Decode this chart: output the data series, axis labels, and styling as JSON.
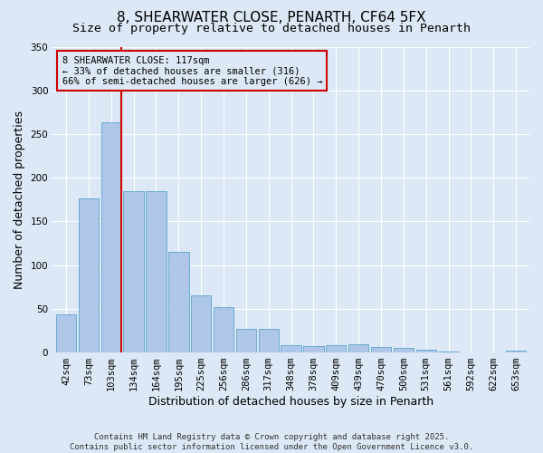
{
  "title": "8, SHEARWATER CLOSE, PENARTH, CF64 5FX",
  "subtitle": "Size of property relative to detached houses in Penarth",
  "xlabel": "Distribution of detached houses by size in Penarth",
  "ylabel": "Number of detached properties",
  "footer_line1": "Contains HM Land Registry data © Crown copyright and database right 2025.",
  "footer_line2": "Contains public sector information licensed under the Open Government Licence v3.0.",
  "annotation_line1": "8 SHEARWATER CLOSE: 117sqm",
  "annotation_line2": "← 33% of detached houses are smaller (316)",
  "annotation_line3": "66% of semi-detached houses are larger (626) →",
  "categories": [
    "42sqm",
    "73sqm",
    "103sqm",
    "134sqm",
    "164sqm",
    "195sqm",
    "225sqm",
    "256sqm",
    "286sqm",
    "317sqm",
    "348sqm",
    "378sqm",
    "409sqm",
    "439sqm",
    "470sqm",
    "500sqm",
    "531sqm",
    "561sqm",
    "592sqm",
    "622sqm",
    "653sqm"
  ],
  "bin_edges": [
    42,
    73,
    103,
    134,
    164,
    195,
    225,
    256,
    286,
    317,
    348,
    378,
    409,
    439,
    470,
    500,
    531,
    561,
    592,
    622,
    653
  ],
  "values": [
    44,
    176,
    263,
    185,
    185,
    115,
    65,
    52,
    27,
    27,
    8,
    7,
    8,
    9,
    6,
    5,
    3,
    1,
    0,
    0,
    2
  ],
  "bar_color": "#aec6e8",
  "bar_edge_color": "#6aaad4",
  "vline_color": "#cc0000",
  "vline_x": 117,
  "annotation_box_color": "#cc0000",
  "background_color": "#dce8f5",
  "ylim": [
    0,
    350
  ],
  "yticks": [
    0,
    50,
    100,
    150,
    200,
    250,
    300,
    350
  ],
  "title_fontsize": 11,
  "subtitle_fontsize": 9.5,
  "axis_label_fontsize": 9,
  "tick_fontsize": 7.5,
  "annotation_fontsize": 7.5,
  "footer_fontsize": 6.5
}
